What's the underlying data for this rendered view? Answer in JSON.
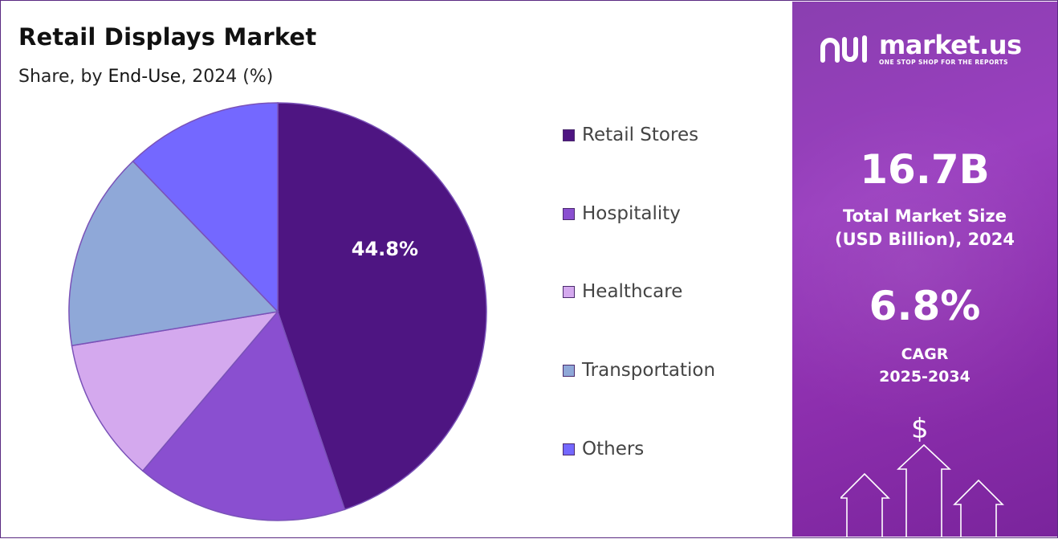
{
  "header": {
    "title": "Retail Displays Market",
    "subtitle_prefix": "Share, by ",
    "subtitle_emphasis": "End-Use",
    "subtitle_suffix": ", 2024 (%)"
  },
  "chart_data": {
    "type": "pie",
    "categories": [
      "Retail Stores",
      "Hospitality",
      "Healthcare",
      "Transportation",
      "Others"
    ],
    "values": [
      44.8,
      16.4,
      11.2,
      15.4,
      12.2
    ],
    "colors": [
      "#4e1582",
      "#8a4fd0",
      "#d4a9ee",
      "#8fa8d8",
      "#7468ff"
    ],
    "data_labels": [
      "44.8%",
      "",
      "",
      "",
      ""
    ],
    "legend_position": "right"
  },
  "legend": {
    "items": [
      {
        "label": "Retail Stores",
        "color": "#4e1582"
      },
      {
        "label": "Hospitality",
        "color": "#8a4fd0"
      },
      {
        "label": "Healthcare",
        "color": "#d4a9ee"
      },
      {
        "label": "Transportation",
        "color": "#8fa8d8"
      },
      {
        "label": "Others",
        "color": "#7468ff"
      }
    ]
  },
  "sidebar": {
    "brand_name": "market.us",
    "brand_tagline": "ONE STOP SHOP FOR THE REPORTS",
    "market_size_value": "16.7B",
    "market_size_label_line1": "Total Market Size",
    "market_size_label_line2": "(USD Billion), 2024",
    "cagr_value": "6.8%",
    "cagr_label_line1": "CAGR",
    "cagr_label_line2": "2025-2034",
    "dollar_symbol": "$",
    "logo_icon": "market-us-logo-icon",
    "arrows_icon": "growth-arrows-icon",
    "background_color": "#8d34b3"
  }
}
